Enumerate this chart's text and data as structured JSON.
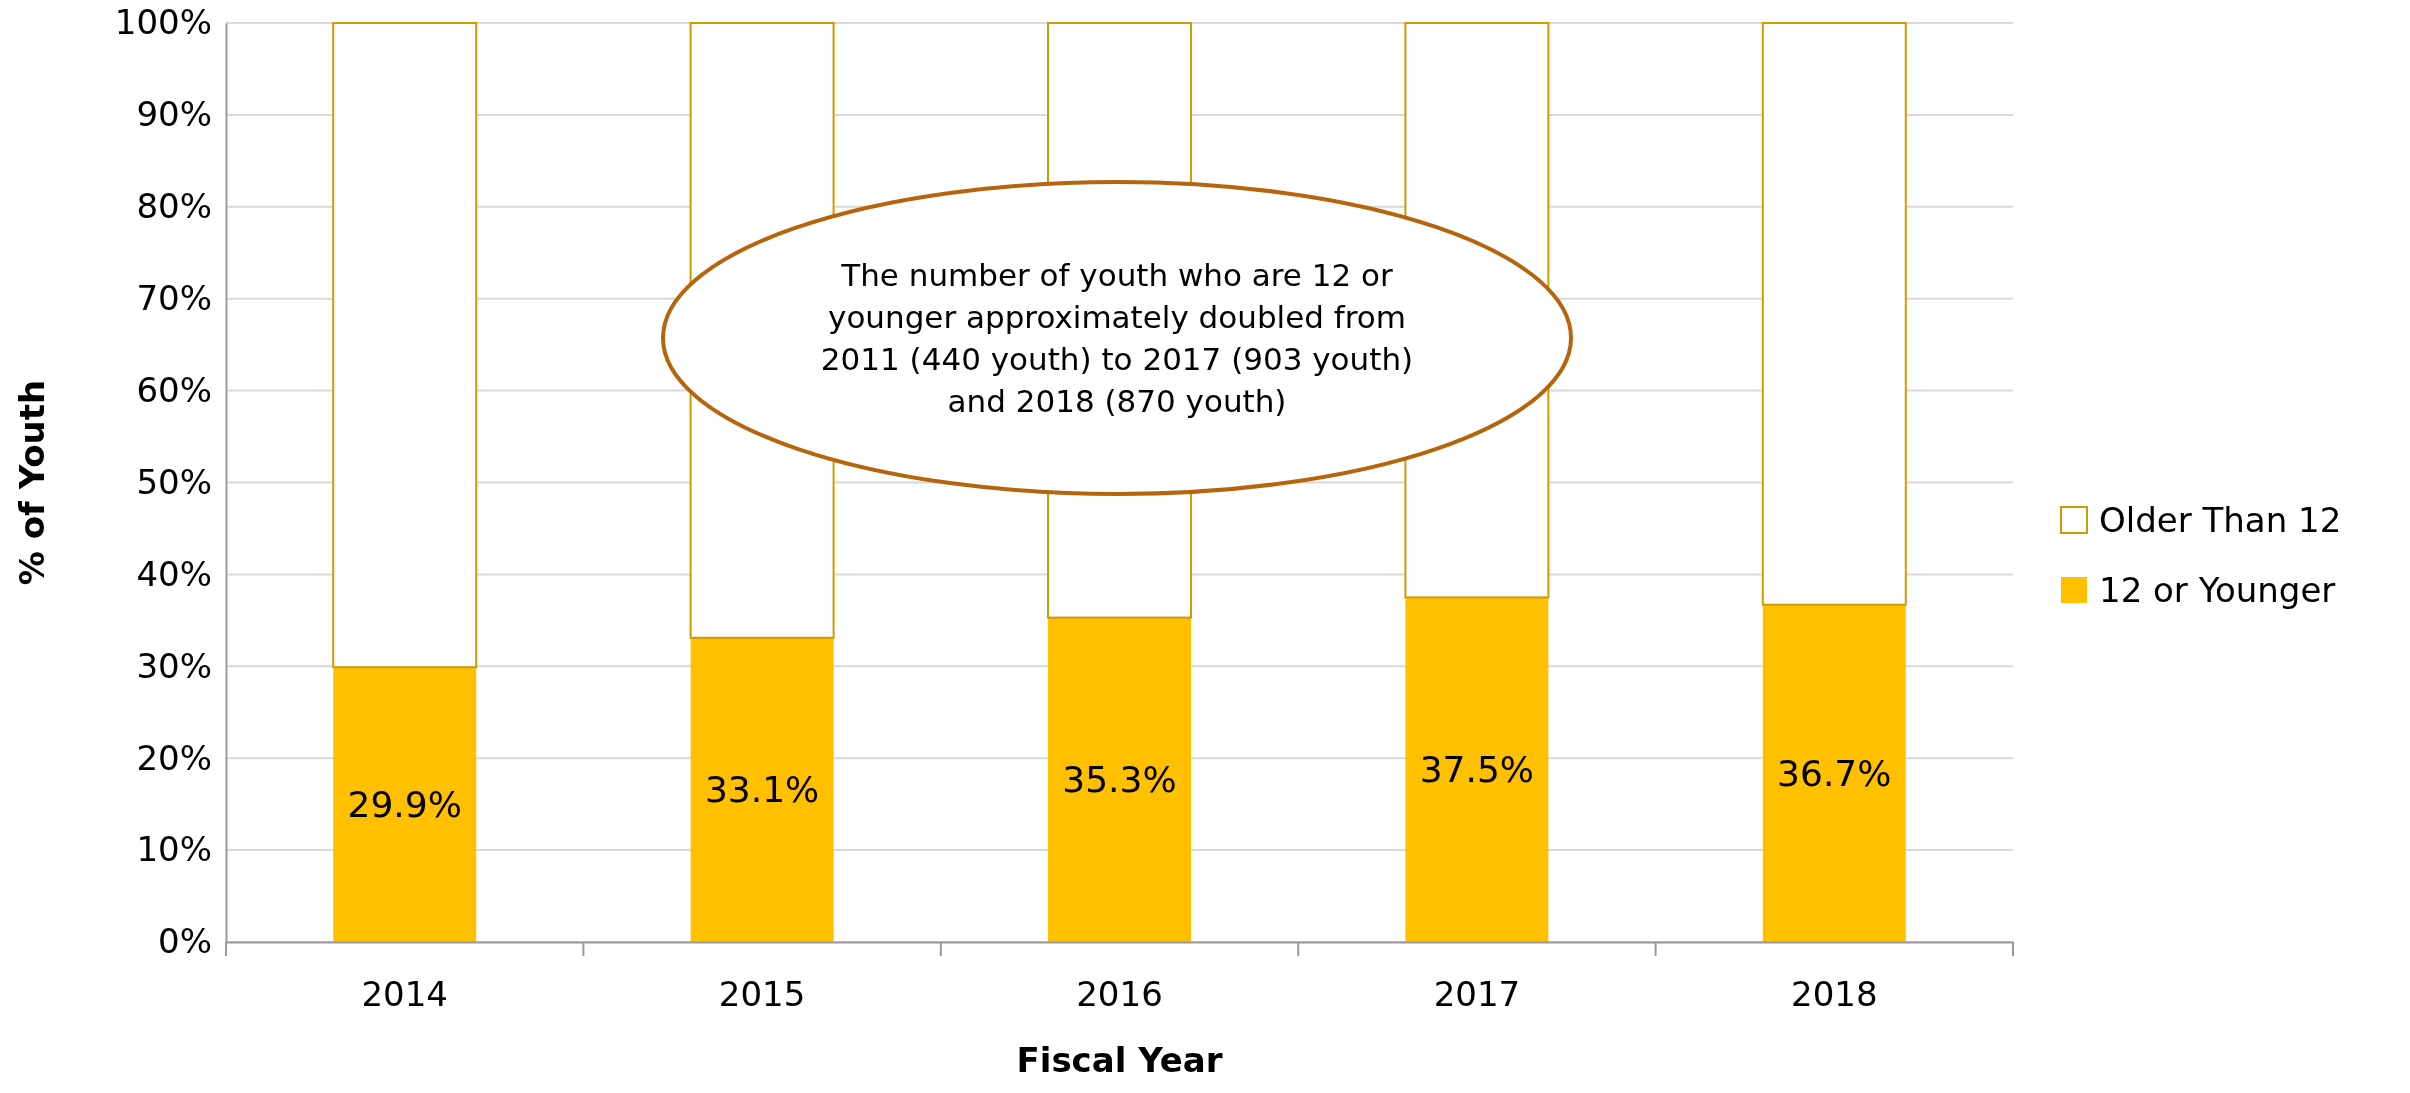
{
  "chart_data": {
    "type": "bar",
    "stacked": true,
    "xlabel": "Fiscal Year",
    "ylabel": "% of Youth",
    "categories": [
      "2014",
      "2015",
      "2016",
      "2017",
      "2018"
    ],
    "series": [
      {
        "name": "12 or Younger",
        "color": "#ffc000",
        "values": [
          29.9,
          33.1,
          35.3,
          37.5,
          36.7
        ],
        "value_labels": [
          "29.9%",
          "33.1%",
          "35.3%",
          "37.5%",
          "36.7%"
        ]
      },
      {
        "name": "Older Than 12",
        "color": "#ffffff",
        "values": [
          70.1,
          66.9,
          64.7,
          62.5,
          63.3
        ]
      }
    ],
    "ylim": [
      0,
      100
    ],
    "yticks": [
      {
        "value": 0,
        "label": "0%"
      },
      {
        "value": 10,
        "label": "10%"
      },
      {
        "value": 20,
        "label": "20%"
      },
      {
        "value": 30,
        "label": "30%"
      },
      {
        "value": 40,
        "label": "40%"
      },
      {
        "value": 50,
        "label": "50%"
      },
      {
        "value": 60,
        "label": "60%"
      },
      {
        "value": 70,
        "label": "70%"
      },
      {
        "value": 80,
        "label": "80%"
      },
      {
        "value": 90,
        "label": "90%"
      },
      {
        "value": 100,
        "label": "100%"
      }
    ],
    "grid": "y",
    "legend": "right",
    "annotations": [
      "The number of youth who are 12 or younger approximately doubled from 2011 (440 youth) to 2017 (903 youth) and 2018 (870 youth)"
    ]
  }
}
